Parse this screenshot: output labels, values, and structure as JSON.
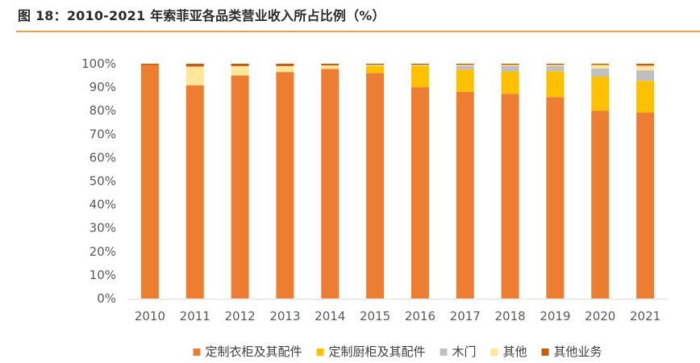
{
  "title": "图 18：2010-2021 年索菲亚各品类营业收入所占比例（%）",
  "chart_data": {
    "type": "bar",
    "stacked": true,
    "title": "图 18：2010-2021 年索菲亚各品类营业收入所占比例（%）",
    "xlabel": "",
    "ylabel": "",
    "ylim": [
      0,
      100
    ],
    "yticks": [
      "0%",
      "10%",
      "20%",
      "30%",
      "40%",
      "50%",
      "60%",
      "70%",
      "80%",
      "90%",
      "100%"
    ],
    "categories": [
      "2010",
      "2011",
      "2012",
      "2013",
      "2014",
      "2015",
      "2016",
      "2017",
      "2018",
      "2019",
      "2020",
      "2021"
    ],
    "legend_position": "bottom",
    "grid": false,
    "series": [
      {
        "name": "定制衣柜及其配件",
        "color": "#ED7D31",
        "values": [
          99.5,
          90.8,
          95.0,
          96.5,
          97.8,
          96.0,
          90.0,
          88.0,
          87.2,
          85.8,
          80.0,
          79.2
        ]
      },
      {
        "name": "定制厨柜及其配件",
        "color": "#FFC000",
        "values": [
          0,
          0,
          0,
          0,
          0,
          3.0,
          9.0,
          9.5,
          9.5,
          11.0,
          14.5,
          13.5
        ]
      },
      {
        "name": "木门",
        "color": "#BFBFBF",
        "values": [
          0,
          0,
          0,
          0,
          0,
          0,
          0,
          1.5,
          2.3,
          2.2,
          3.5,
          4.5
        ]
      },
      {
        "name": "其他",
        "color": "#FFE699",
        "values": [
          0,
          8.0,
          4.0,
          2.5,
          1.5,
          0.5,
          0.5,
          0.5,
          0.5,
          0.5,
          1.5,
          2.0
        ]
      },
      {
        "name": "其他业务",
        "color": "#C55A11",
        "values": [
          0.5,
          1.2,
          1.0,
          1.0,
          0.7,
          0.5,
          0.5,
          0.5,
          0.5,
          0.5,
          0.5,
          0.8
        ]
      }
    ]
  }
}
